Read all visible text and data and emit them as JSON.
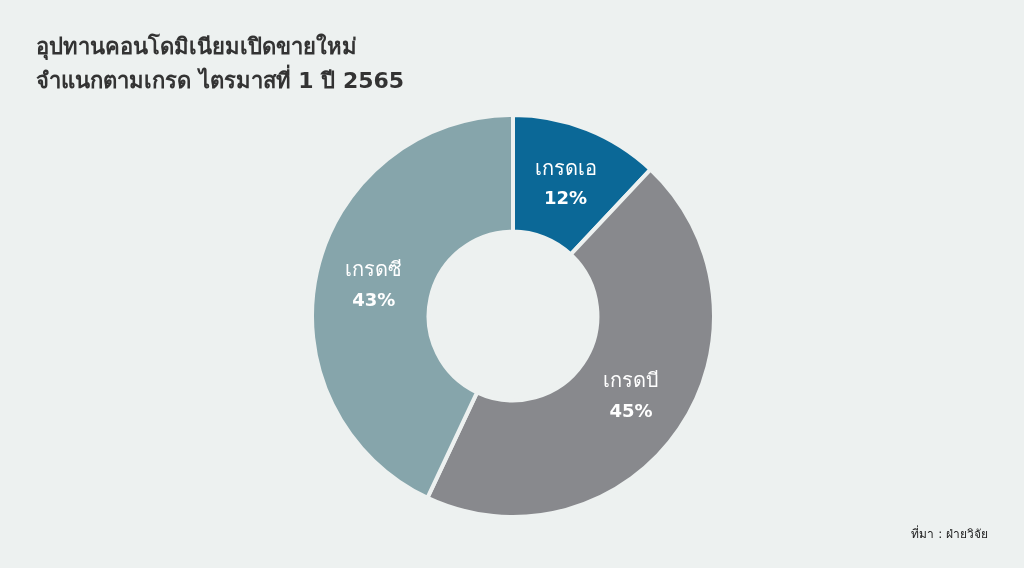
{
  "chart_data": {
    "type": "donut",
    "title": "อุปทานคอนโดมิเนียมเปิดขายใหม่",
    "subtitle": "จำแนกตามเกรด ไตรมาสที่ 1 ปี 2565",
    "categories": [
      "เกรดเอ",
      "เกรดบี",
      "เกรดซี"
    ],
    "values": [
      12,
      45,
      43
    ],
    "value_labels": [
      "12%",
      "45%",
      "43%"
    ],
    "colors": [
      "#0b6897",
      "#88898d",
      "#86a5ab"
    ],
    "annotations": [
      "ที่มา : ฝ่ายวิจัย"
    ]
  }
}
